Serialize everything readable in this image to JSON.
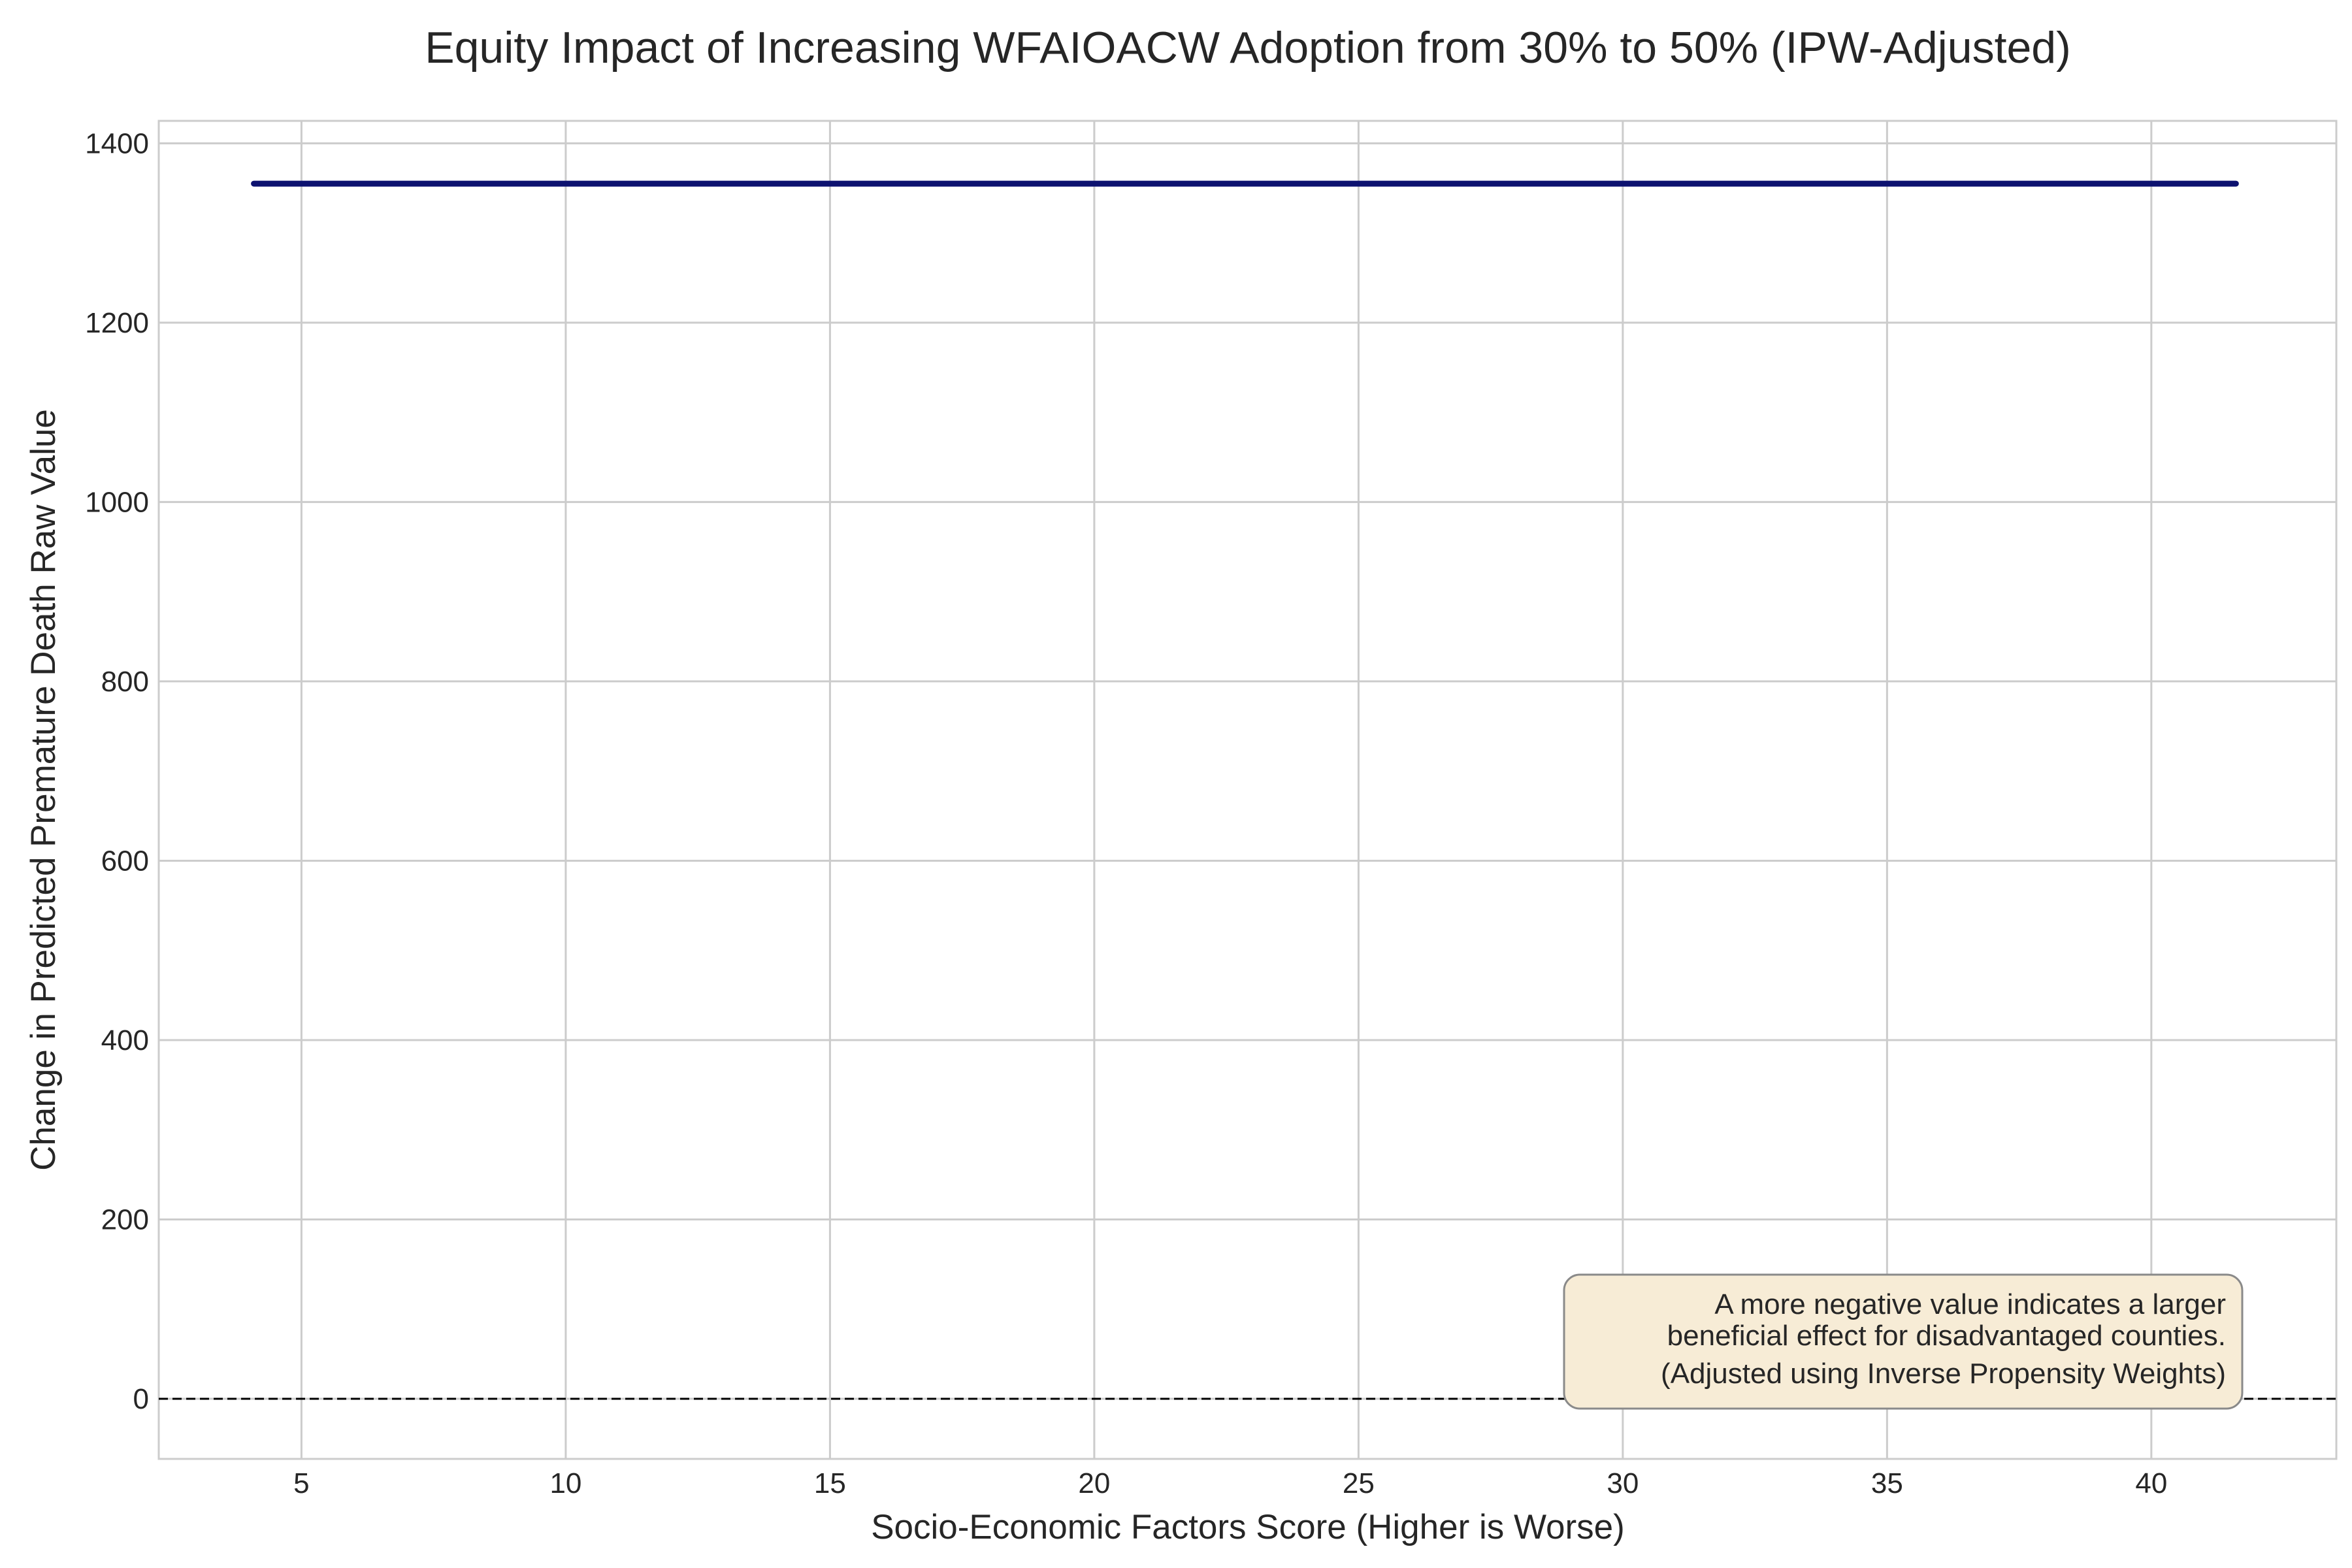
{
  "chart_data": {
    "type": "line",
    "title": "Equity Impact of Increasing WFAIOACW Adoption from 30% to 50% (IPW-Adjusted)",
    "xlabel": "Socio-Economic Factors Score (Higher is Worse)",
    "ylabel": "Change in Predicted Premature Death Raw Value",
    "xlim": [
      2.3,
      43.5
    ],
    "ylim": [
      -67,
      1425
    ],
    "xticks": [
      5,
      10,
      15,
      20,
      25,
      30,
      35,
      40
    ],
    "yticks": [
      0,
      200,
      400,
      600,
      800,
      1000,
      1200,
      1400
    ],
    "grid": true,
    "series": [
      {
        "x": [
          4.1,
          10,
          15,
          20,
          25,
          30,
          35,
          41.6
        ],
        "y": [
          1355,
          1355,
          1355,
          1355,
          1355,
          1355,
          1355,
          1355
        ],
        "color": "#0d1270"
      }
    ],
    "reference_line": {
      "y": 0,
      "style": "dashed",
      "color": "#000000"
    },
    "annotation": {
      "lines": [
        "A more negative value indicates a larger",
        "beneficial effect for disadvantaged counties.",
        "(Adjusted using Inverse Propensity Weights)"
      ],
      "position": "bottom-right",
      "background": "#f7ecd6",
      "border": "#8a8a8a"
    }
  }
}
